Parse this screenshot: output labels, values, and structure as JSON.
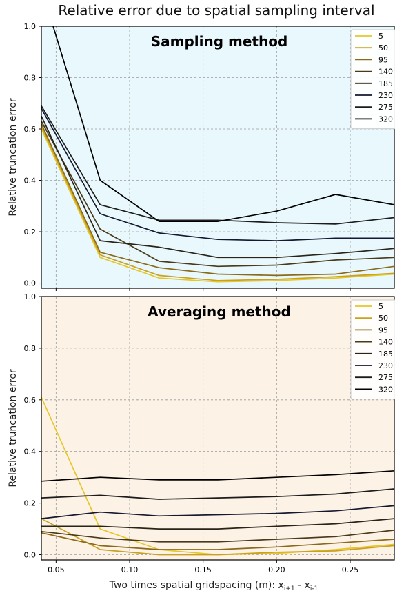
{
  "figure": {
    "title": "Relative error due to spatial sampling interval",
    "xlabel_main": "Two times spatial gridspacing (m): ",
    "xlabel_sub1": "i+1",
    "xlabel_sub2": "i-1",
    "xlabel_x": "x",
    "xlabel_minus": " - "
  },
  "chart_data": [
    {
      "type": "line",
      "title": "Sampling method",
      "xlabel": "",
      "ylabel": "Relative truncation error",
      "xlim": [
        0.04,
        0.28
      ],
      "ylim": [
        -0.02,
        1.0
      ],
      "background": "#e8f8fc",
      "grid": true,
      "legend_placement": "top-right",
      "x": [
        0.04,
        0.08,
        0.12,
        0.16,
        0.2,
        0.24,
        0.28
      ],
      "xticks": [
        "0.05",
        "0.10",
        "0.15",
        "0.20",
        "0.25"
      ],
      "yticks": [
        "0.0",
        "0.2",
        "0.4",
        "0.6",
        "0.8",
        "1.0"
      ],
      "series": [
        {
          "name": "5",
          "color": "#e5c72a",
          "values": [
            0.6,
            0.1,
            0.02,
            0.005,
            0.01,
            0.02,
            0.035
          ]
        },
        {
          "name": "50",
          "color": "#c9a020",
          "values": [
            0.61,
            0.11,
            0.03,
            0.01,
            0.015,
            0.025,
            0.038
          ]
        },
        {
          "name": "95",
          "color": "#8a6a1a",
          "values": [
            0.62,
            0.12,
            0.06,
            0.035,
            0.03,
            0.035,
            0.065
          ]
        },
        {
          "name": "140",
          "color": "#4a3a1a",
          "values": [
            0.63,
            0.21,
            0.085,
            0.065,
            0.07,
            0.09,
            0.1
          ]
        },
        {
          "name": "185",
          "color": "#2a2418",
          "values": [
            0.65,
            0.165,
            0.14,
            0.1,
            0.1,
            0.115,
            0.135
          ]
        },
        {
          "name": "230",
          "color": "#141830",
          "values": [
            0.68,
            0.27,
            0.195,
            0.17,
            0.165,
            0.175,
            0.175
          ]
        },
        {
          "name": "275",
          "color": "#1c1c1c",
          "values": [
            0.69,
            0.305,
            0.245,
            0.245,
            0.235,
            0.23,
            0.255
          ]
        },
        {
          "name": "320",
          "color": "#000000",
          "values": [
            1.15,
            0.4,
            0.24,
            0.24,
            0.28,
            0.345,
            0.305
          ]
        }
      ]
    },
    {
      "type": "line",
      "title": "Averaging method",
      "xlabel": "Two times spatial gridspacing (m): x i+1 - x i-1",
      "ylabel": "Relative truncation error",
      "xlim": [
        0.04,
        0.28
      ],
      "ylim": [
        -0.02,
        1.0
      ],
      "background": "#fdf2e6",
      "grid": true,
      "legend_placement": "top-right",
      "x": [
        0.04,
        0.08,
        0.12,
        0.16,
        0.2,
        0.24,
        0.28
      ],
      "xticks": [
        "0.05",
        "0.10",
        "0.15",
        "0.20",
        "0.25"
      ],
      "yticks": [
        "0.0",
        "0.2",
        "0.4",
        "0.6",
        "0.8",
        "1.0"
      ],
      "series": [
        {
          "name": "5",
          "color": "#e5c72a",
          "values": [
            0.61,
            0.1,
            0.02,
            0.0,
            0.005,
            0.02,
            0.04
          ]
        },
        {
          "name": "50",
          "color": "#c9a020",
          "values": [
            0.14,
            0.02,
            0.0,
            0.0,
            0.01,
            0.015,
            0.035
          ]
        },
        {
          "name": "95",
          "color": "#8a6a1a",
          "values": [
            0.085,
            0.035,
            0.02,
            0.02,
            0.03,
            0.045,
            0.06
          ]
        },
        {
          "name": "140",
          "color": "#4a3a1a",
          "values": [
            0.09,
            0.065,
            0.05,
            0.05,
            0.06,
            0.07,
            0.095
          ]
        },
        {
          "name": "185",
          "color": "#2a2418",
          "values": [
            0.11,
            0.11,
            0.1,
            0.1,
            0.11,
            0.12,
            0.14
          ]
        },
        {
          "name": "230",
          "color": "#141830",
          "values": [
            0.14,
            0.165,
            0.15,
            0.155,
            0.16,
            0.17,
            0.19
          ]
        },
        {
          "name": "275",
          "color": "#1c1c1c",
          "values": [
            0.22,
            0.23,
            0.215,
            0.22,
            0.225,
            0.235,
            0.255
          ]
        },
        {
          "name": "320",
          "color": "#000000",
          "values": [
            0.285,
            0.3,
            0.29,
            0.29,
            0.3,
            0.31,
            0.325
          ]
        }
      ]
    }
  ]
}
